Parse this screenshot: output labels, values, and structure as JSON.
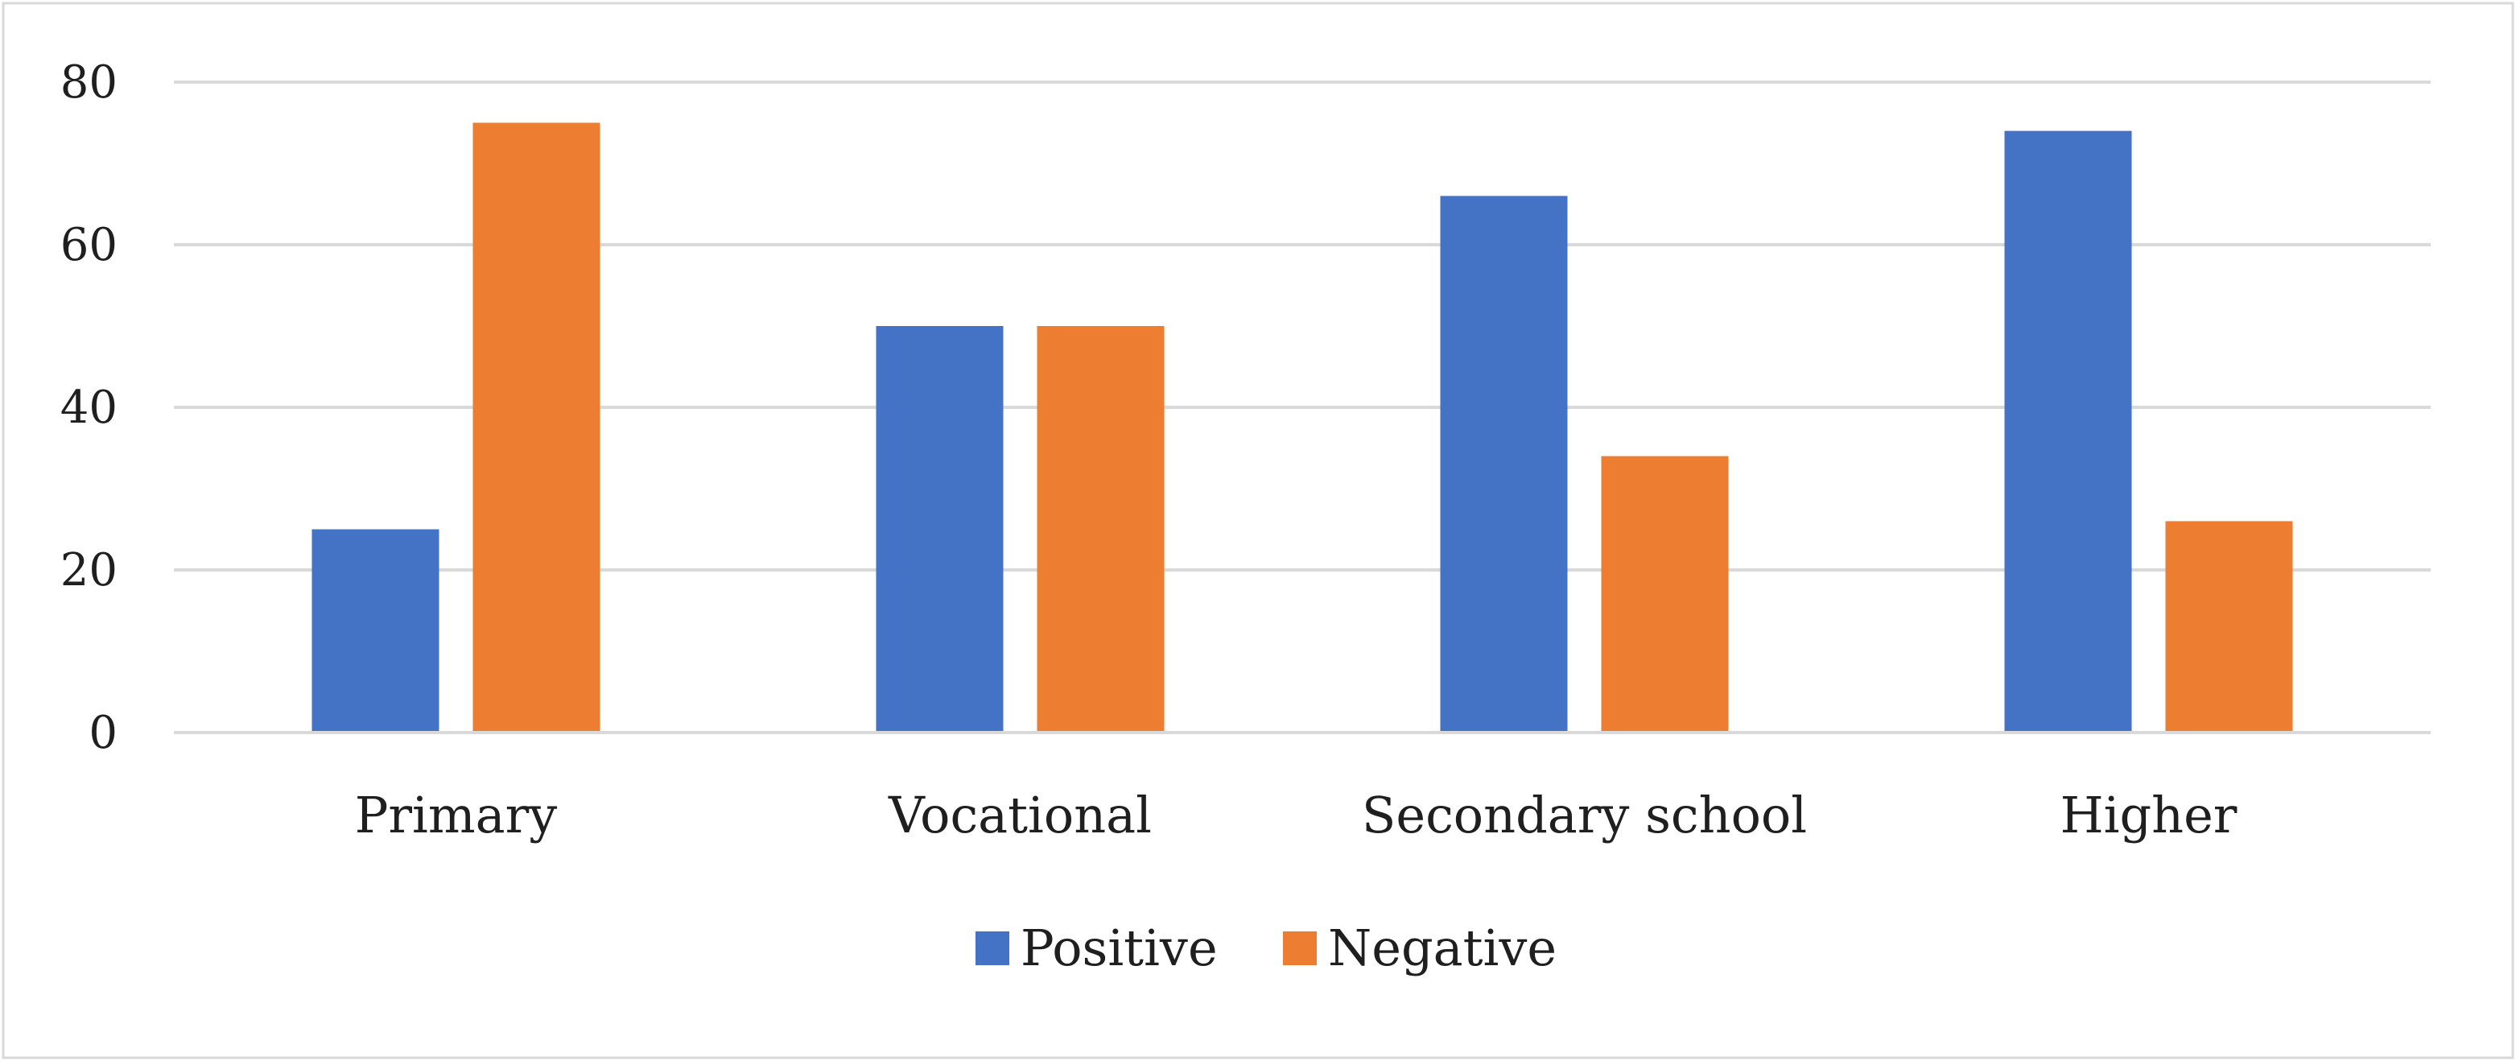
{
  "chart_data": {
    "type": "bar",
    "title": "",
    "xlabel": "",
    "ylabel": "",
    "categories": [
      "Primary",
      "Vocational",
      "Secondary school",
      "Higher"
    ],
    "series": [
      {
        "name": "Positive",
        "color": "#4472C4",
        "values": [
          25,
          50,
          66,
          74
        ]
      },
      {
        "name": "Negative",
        "color": "#ED7D31",
        "values": [
          75,
          50,
          34,
          26
        ]
      }
    ],
    "ylim": [
      0,
      80
    ],
    "yticks": [
      0,
      20,
      40,
      60,
      80
    ],
    "grid": true,
    "legend_position": "bottom"
  }
}
